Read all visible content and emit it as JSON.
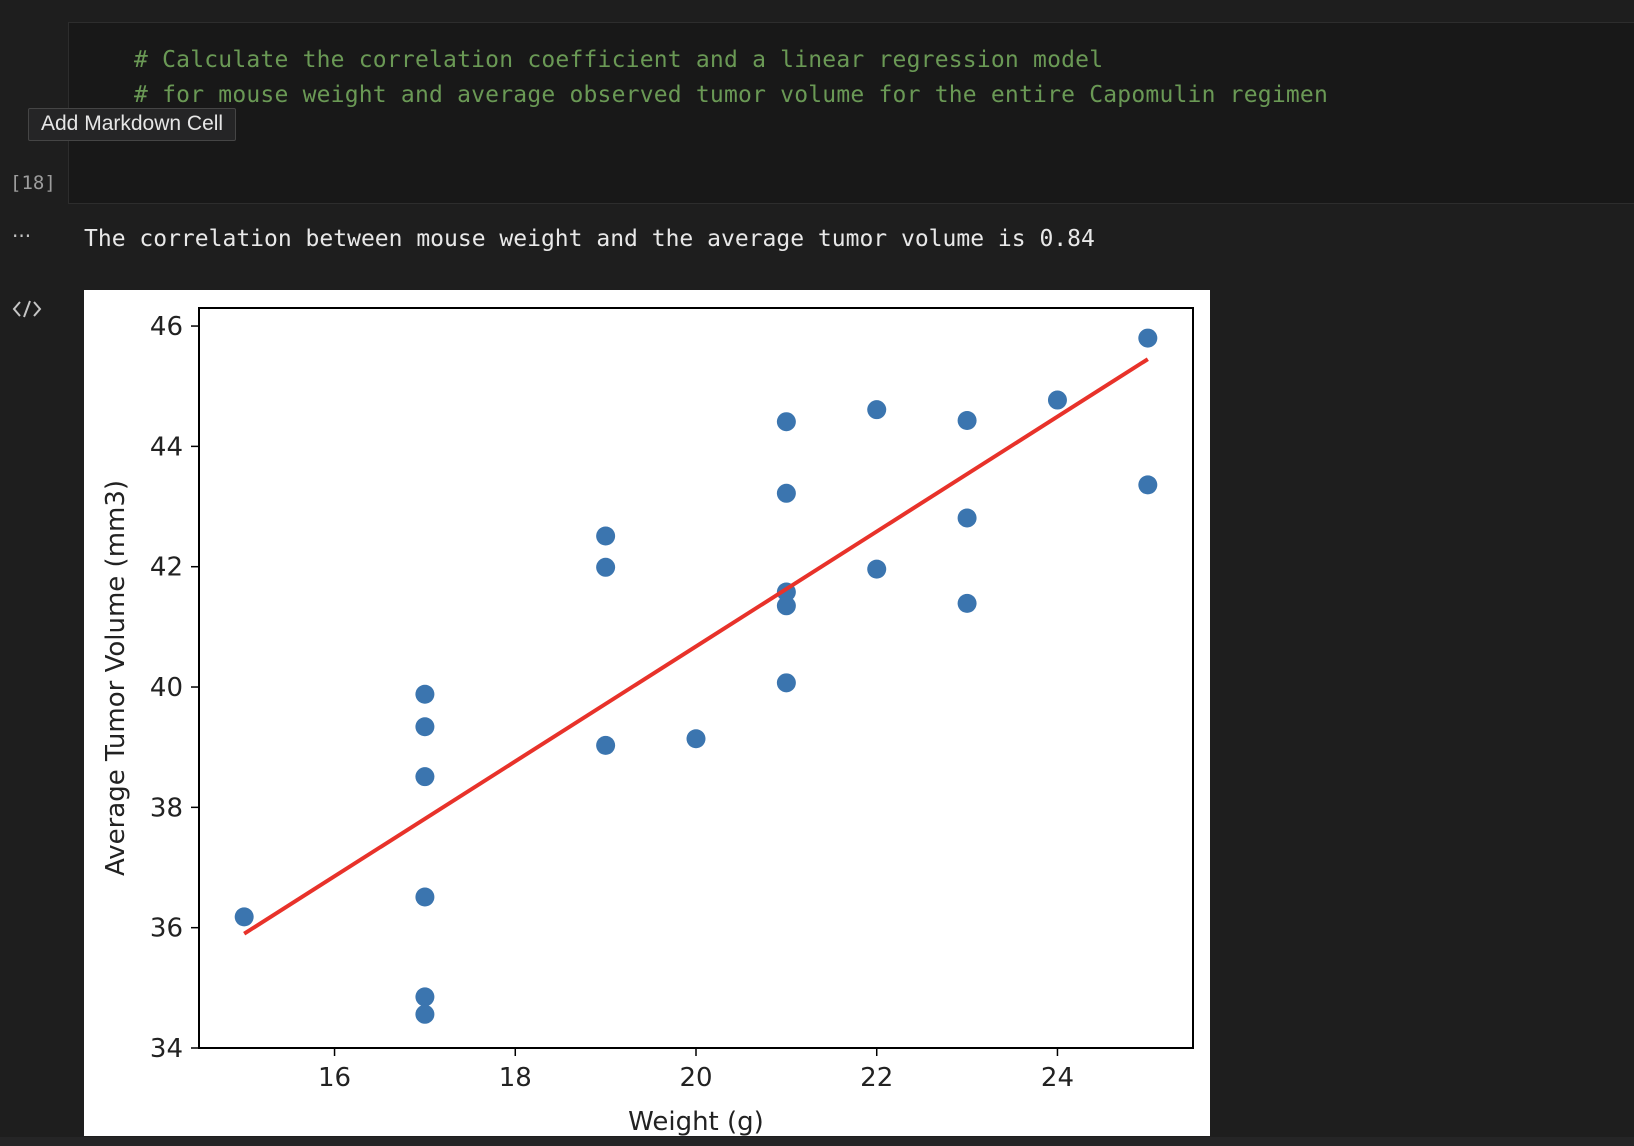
{
  "code_cell": {
    "lines": [
      "# Calculate the correlation coefficient and a linear regression model",
      "# for mouse weight and average observed tumor volume for the entire Capomulin regimen"
    ],
    "execution_count": "[18]"
  },
  "tooltip": {
    "label": "Add Markdown Cell"
  },
  "output": {
    "ellipsis": "···",
    "text": "The correlation between mouse weight and the average tumor volume is 0.84"
  },
  "icons": {
    "output_action": "code-brackets-icon"
  },
  "chart_data": {
    "type": "scatter",
    "xlabel": "Weight (g)",
    "ylabel": "Average Tumor Volume (mm3)",
    "xlim": [
      14.5,
      25.5
    ],
    "ylim": [
      34,
      46.3
    ],
    "xticks": [
      16,
      18,
      20,
      22,
      24
    ],
    "yticks": [
      34,
      36,
      38,
      40,
      42,
      44,
      46
    ],
    "points": [
      [
        15,
        36.18
      ],
      [
        17,
        39.88
      ],
      [
        17,
        39.34
      ],
      [
        17,
        38.51
      ],
      [
        17,
        36.51
      ],
      [
        17,
        34.85
      ],
      [
        17,
        34.56
      ],
      [
        19,
        42.51
      ],
      [
        19,
        41.99
      ],
      [
        19,
        39.03
      ],
      [
        20,
        39.14
      ],
      [
        21,
        44.41
      ],
      [
        21,
        43.22
      ],
      [
        21,
        41.58
      ],
      [
        21,
        41.35
      ],
      [
        21,
        40.07
      ],
      [
        22,
        44.61
      ],
      [
        22,
        41.96
      ],
      [
        23,
        44.43
      ],
      [
        23,
        42.81
      ],
      [
        23,
        41.39
      ],
      [
        24,
        44.77
      ],
      [
        25,
        45.8
      ],
      [
        25,
        43.36
      ]
    ],
    "regression": {
      "x": [
        15,
        25
      ],
      "y": [
        35.9,
        45.45
      ]
    },
    "point_color": "#3b75af",
    "line_color": "#e8322a"
  }
}
